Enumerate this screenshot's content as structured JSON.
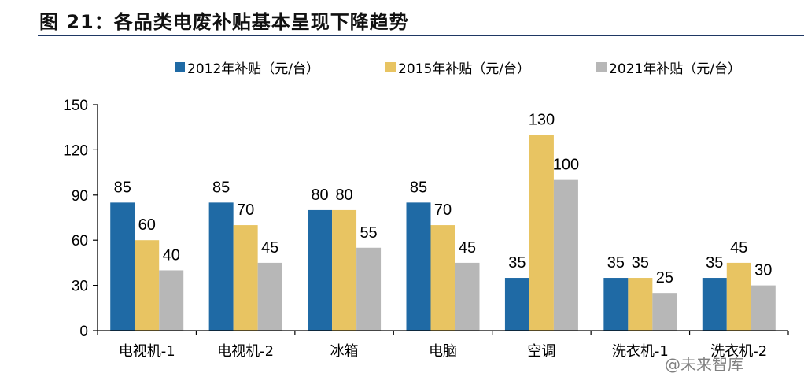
{
  "page": {
    "title": "图 21：各品类电废补贴基本呈现下降趋势",
    "watermark": "@未来智库"
  },
  "colors": {
    "series_2012": "#1f6aa5",
    "series_2015": "#e8c462",
    "series_2021": "#b7b7b7",
    "title_rule": "#1f3864"
  },
  "chart_data": {
    "type": "bar",
    "categories": [
      "电视机-1",
      "电视机-2",
      "冰箱",
      "电脑",
      "空调",
      "洗衣机-1",
      "洗衣机-2"
    ],
    "series": [
      {
        "name": "2012年补贴（元/台）",
        "values": [
          85,
          85,
          80,
          85,
          35,
          35,
          35
        ]
      },
      {
        "name": "2015年补贴（元/台）",
        "values": [
          60,
          70,
          80,
          70,
          130,
          35,
          45
        ]
      },
      {
        "name": "2021年补贴（元/台）",
        "values": [
          40,
          45,
          55,
          45,
          100,
          25,
          30
        ]
      }
    ],
    "yticks": [
      "0",
      "30",
      "60",
      "90",
      "120",
      "150"
    ],
    "ylim": [
      0,
      150
    ],
    "grid": false,
    "legend_position": "top"
  }
}
